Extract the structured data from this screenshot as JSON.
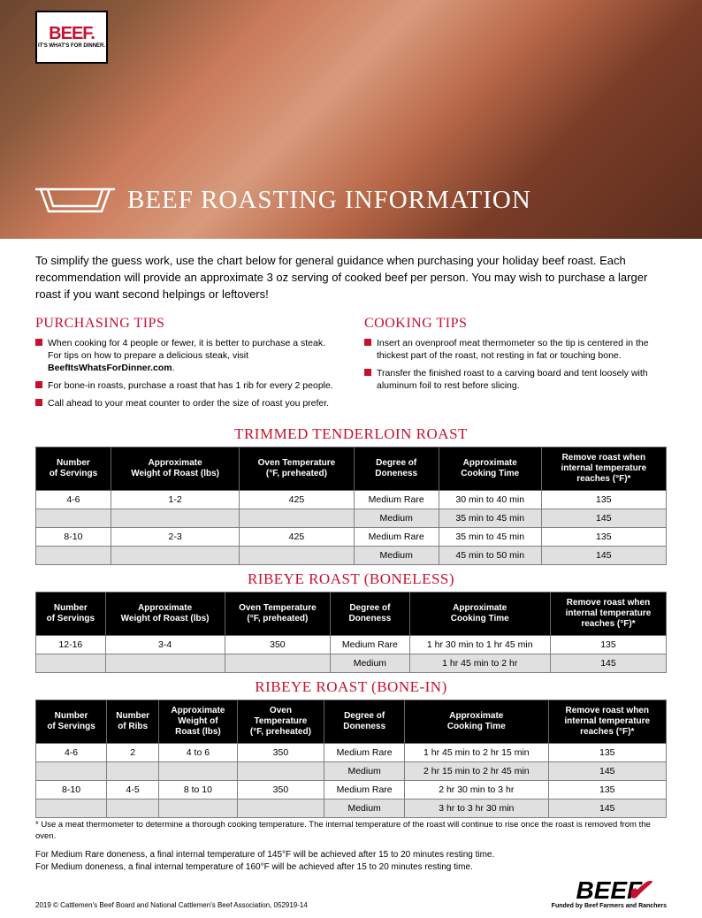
{
  "colors": {
    "accent": "#c8102e",
    "header_bg": "#000000",
    "header_text": "#ffffff",
    "shade_row": "#e0e0e0",
    "border": "#808080",
    "body_text": "#000000",
    "bg": "#ffffff"
  },
  "logo": {
    "brand": "BEEF.",
    "tagline": "IT'S WHAT'S FOR DINNER."
  },
  "hero_title": "BEEF ROASTING INFORMATION",
  "intro": "To simplify the guess work, use the chart below for general guidance when purchasing your holiday beef roast. Each recommendation will provide an approximate 3 oz serving of cooked beef per person. You may wish to purchase a larger roast if you want second helpings or leftovers!",
  "purchasing": {
    "heading": "PURCHASING TIPS",
    "items": [
      {
        "text": "When cooking for 4 people or fewer, it is better to purchase a steak. For tips on how to prepare a delicious steak, visit ",
        "bold_suffix": "BeefItsWhatsForDinner.com",
        "suffix": "."
      },
      {
        "text": "For bone-in roasts, purchase a roast that has 1 rib for every 2 people."
      },
      {
        "text": "Call ahead to your meat counter to order the size of roast you prefer."
      }
    ]
  },
  "cooking": {
    "heading": "COOKING TIPS",
    "items": [
      {
        "text": "Insert an ovenproof meat thermometer so the tip is centered in the thickest part of the roast, not resting in fat or touching bone."
      },
      {
        "text": "Transfer the finished roast to a carving board and tent loosely with aluminum foil to rest before slicing."
      }
    ]
  },
  "table1": {
    "title": "TRIMMED TENDERLOIN ROAST",
    "columns": [
      "Number\nof Servings",
      "Approximate\nWeight of Roast (lbs)",
      "Oven Temperature\n(°F, preheated)",
      "Degree of\nDoneness",
      "Approximate\nCooking Time",
      "Remove roast when\ninternal temperature\nreaches (°F)*"
    ],
    "rows": [
      {
        "shade": false,
        "cells": [
          "4-6",
          "1-2",
          "425",
          "Medium Rare",
          "30 min to 40 min",
          "135"
        ]
      },
      {
        "shade": true,
        "cells": [
          "",
          "",
          "",
          "Medium",
          "35 min to 45 min",
          "145"
        ]
      },
      {
        "shade": false,
        "cells": [
          "8-10",
          "2-3",
          "425",
          "Medium Rare",
          "35 min to 45 min",
          "135"
        ]
      },
      {
        "shade": true,
        "cells": [
          "",
          "",
          "",
          "Medium",
          "45 min to 50 min",
          "145"
        ]
      }
    ]
  },
  "table2": {
    "title": "RIBEYE ROAST (BONELESS)",
    "columns": [
      "Number\nof Servings",
      "Approximate\nWeight of Roast (lbs)",
      "Oven Temperature\n(°F, preheated)",
      "Degree of\nDoneness",
      "Approximate\nCooking Time",
      "Remove roast when\ninternal temperature\nreaches (°F)*"
    ],
    "rows": [
      {
        "shade": false,
        "cells": [
          "12-16",
          "3-4",
          "350",
          "Medium Rare",
          "1 hr 30 min to 1 hr 45 min",
          "135"
        ]
      },
      {
        "shade": true,
        "cells": [
          "",
          "",
          "",
          "Medium",
          "1 hr 45 min to 2 hr",
          "145"
        ]
      }
    ]
  },
  "table3": {
    "title": "RIBEYE ROAST (BONE-IN)",
    "columns": [
      "Number\nof Servings",
      "Number\nof Ribs",
      "Approximate\nWeight of\nRoast (lbs)",
      "Oven\nTemperature\n(°F, preheated)",
      "Degree of\nDoneness",
      "Approximate\nCooking Time",
      "Remove roast when\ninternal temperature\nreaches (°F)*"
    ],
    "rows": [
      {
        "shade": false,
        "cells": [
          "4-6",
          "2",
          "4 to 6",
          "350",
          "Medium Rare",
          "1 hr 45 min to 2 hr 15 min",
          "135"
        ]
      },
      {
        "shade": true,
        "cells": [
          "",
          "",
          "",
          "",
          "Medium",
          "2 hr 15 min to 2 hr 45 min",
          "145"
        ]
      },
      {
        "shade": false,
        "cells": [
          "8-10",
          "4-5",
          "8 to 10",
          "350",
          "Medium Rare",
          "2 hr 30 min to 3 hr",
          "135"
        ]
      },
      {
        "shade": true,
        "cells": [
          "",
          "",
          "",
          "",
          "Medium",
          "3 hr to 3 hr 30 min",
          "145"
        ]
      }
    ]
  },
  "footnote": "* Use a meat thermometer to determine a thorough cooking temperature. The internal temperature of the roast will continue to rise once the roast is removed from the oven.",
  "note_rare": "For Medium Rare doneness, a final internal temperature of 145°F will be achieved after 15 to 20 minutes resting time.",
  "note_med": "For Medium doneness, a final internal temperature of 160°F will be achieved after 15 to 20 minutes resting time.",
  "copyright": "2019 © Cattlemen's Beef Board and National Cattlemen's Beef Association, 052919-14",
  "footer": {
    "brand": "BEEF",
    "funded": "Funded by Beef Farmers and Ranchers"
  }
}
